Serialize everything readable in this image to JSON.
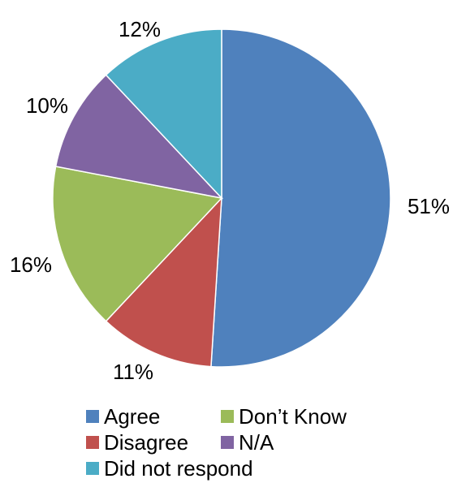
{
  "chart_data": {
    "type": "pie",
    "title": "",
    "start_angle_deg": 0,
    "direction": "clockwise",
    "slices": [
      {
        "label": "Agree",
        "value": 51,
        "display": "51%",
        "color": "#4F81BD"
      },
      {
        "label": "Disagree",
        "value": 11,
        "display": "11%",
        "color": "#C0504D"
      },
      {
        "label": "Don’t Know",
        "value": 16,
        "display": "16%",
        "color": "#9BBB59"
      },
      {
        "label": "N/A",
        "value": 10,
        "display": "10%",
        "color": "#8064A2"
      },
      {
        "label": "Did not respond",
        "value": 12,
        "display": "12%",
        "color": "#4BACC6"
      }
    ],
    "legend": {
      "placement": "bottom",
      "entries": [
        "Agree",
        "Don’t Know",
        "Disagree",
        "N/A",
        "Did not respond"
      ]
    }
  }
}
